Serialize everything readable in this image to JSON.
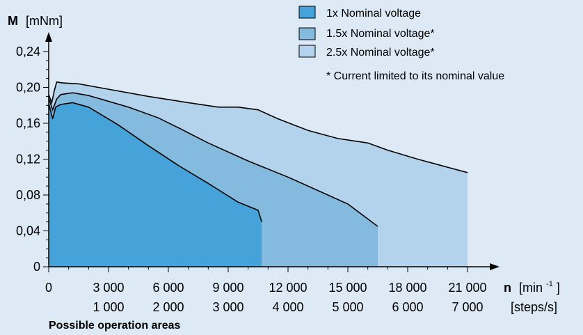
{
  "colors": {
    "background": "#dde9f5",
    "series_1x": "#45a3da",
    "series_1_5x": "#85badf",
    "series_2_5x": "#b3d3ec"
  },
  "chart_data": {
    "type": "area",
    "ylabel_symbol": "M",
    "ylabel_unit": "[mNm]",
    "xlabel_symbol": "n",
    "xlabel_unit_base": "[min",
    "xlabel_unit_sup": "-1",
    "xlabel_unit_end": "]",
    "x2label_unit": "[steps/s]",
    "ylim": [
      0,
      0.27
    ],
    "xlim": [
      0,
      22500
    ],
    "yticks": [
      0,
      0.04,
      0.08,
      0.12,
      0.16,
      0.2,
      0.24
    ],
    "ytick_labels": [
      "0",
      "0,04",
      "0,08",
      "0,12",
      "0,16",
      "0,20",
      "0,24"
    ],
    "xticks": [
      0,
      3000,
      6000,
      9000,
      12000,
      15000,
      18000,
      21000
    ],
    "xtick_labels": [
      "0",
      "3 000",
      "6 000",
      "9 000",
      "12 000",
      "15 000",
      "18 000",
      "21 000"
    ],
    "x2ticks": [
      3000,
      6000,
      9000,
      12000,
      15000,
      18000,
      21000
    ],
    "x2tick_labels": [
      "1 000",
      "2 000",
      "3 000",
      "4 000",
      "5 000",
      "6 000",
      "7 000"
    ],
    "legend": {
      "placement": "top-right",
      "note": "* Current limited to its nominal value"
    },
    "series": [
      {
        "name": "2.5x Nominal voltage*",
        "color": "#b3d3ec",
        "points": [
          [
            0,
            0.192
          ],
          [
            150,
            0.183
          ],
          [
            300,
            0.198
          ],
          [
            400,
            0.206
          ],
          [
            700,
            0.205
          ],
          [
            1500,
            0.204
          ],
          [
            3000,
            0.198
          ],
          [
            5000,
            0.19
          ],
          [
            7000,
            0.183
          ],
          [
            8500,
            0.178
          ],
          [
            9500,
            0.178
          ],
          [
            10500,
            0.175
          ],
          [
            11500,
            0.165
          ],
          [
            13000,
            0.152
          ],
          [
            14500,
            0.143
          ],
          [
            16000,
            0.138
          ],
          [
            17000,
            0.13
          ],
          [
            18500,
            0.12
          ],
          [
            20000,
            0.111
          ],
          [
            21000,
            0.105
          ]
        ]
      },
      {
        "name": "1.5x Nominal voltage*",
        "color": "#85badf",
        "points": [
          [
            0,
            0.188
          ],
          [
            200,
            0.175
          ],
          [
            400,
            0.187
          ],
          [
            600,
            0.192
          ],
          [
            1200,
            0.194
          ],
          [
            2000,
            0.191
          ],
          [
            4000,
            0.178
          ],
          [
            5500,
            0.166
          ],
          [
            6500,
            0.155
          ],
          [
            8000,
            0.138
          ],
          [
            10000,
            0.118
          ],
          [
            12000,
            0.1
          ],
          [
            14000,
            0.08
          ],
          [
            15000,
            0.07
          ],
          [
            16500,
            0.045
          ]
        ]
      },
      {
        "name": "1x Nominal voltage",
        "color": "#45a3da",
        "points": [
          [
            0,
            0.182
          ],
          [
            200,
            0.165
          ],
          [
            350,
            0.178
          ],
          [
            600,
            0.181
          ],
          [
            1200,
            0.183
          ],
          [
            2000,
            0.178
          ],
          [
            3500,
            0.158
          ],
          [
            5000,
            0.135
          ],
          [
            6500,
            0.113
          ],
          [
            8000,
            0.093
          ],
          [
            9500,
            0.072
          ],
          [
            10500,
            0.063
          ],
          [
            12000,
            0.053
          ],
          [
            10680,
            0.05
          ]
        ]
      }
    ]
  },
  "caption": "Possible operation areas"
}
